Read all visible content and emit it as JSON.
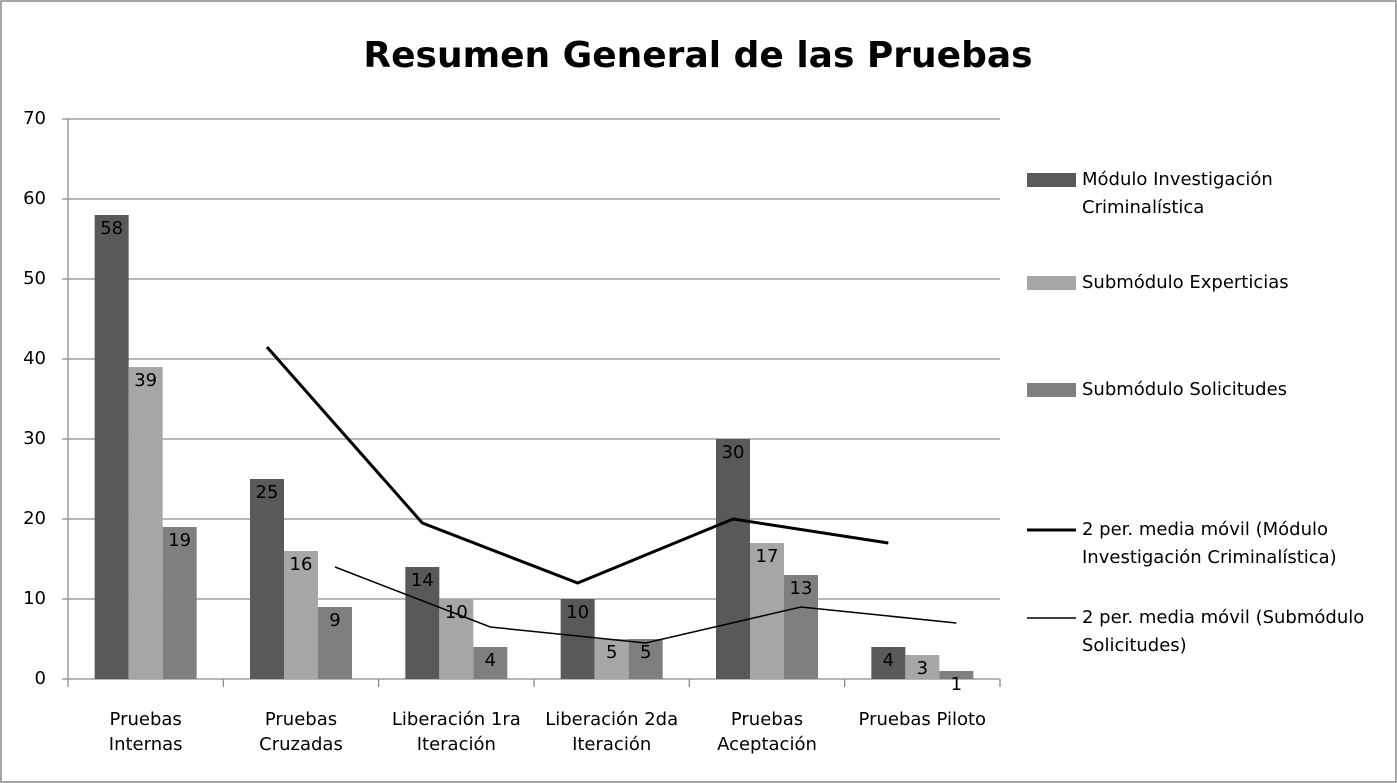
{
  "chart_data": {
    "type": "bar",
    "title": "Resumen General de las Pruebas",
    "categories": [
      "Pruebas Internas",
      "Pruebas Cruzadas",
      "Liberación 1ra Iteración",
      "Liberación 2da Iteración",
      "Pruebas Aceptación",
      "Pruebas Piloto"
    ],
    "series": [
      {
        "name": "Módulo Investigación Criminalística",
        "type": "bar",
        "color": "#595959",
        "values": [
          58,
          25,
          14,
          10,
          30,
          4
        ]
      },
      {
        "name": "Submódulo Experticias",
        "type": "bar",
        "color": "#a6a6a6",
        "values": [
          39,
          16,
          10,
          5,
          17,
          3
        ]
      },
      {
        "name": "Submódulo Solicitudes",
        "type": "bar",
        "color": "#7f7f7f",
        "values": [
          19,
          9,
          4,
          5,
          13,
          1
        ]
      },
      {
        "name": "2 per. media móvil (Módulo Investigación Criminalística)",
        "type": "line",
        "color": "#000000",
        "line_width": 3,
        "based_on": 0,
        "values": [
          null,
          41.5,
          19.5,
          12,
          20,
          17
        ]
      },
      {
        "name": "2 per. media móvil (Submódulo Solicitudes)",
        "type": "line",
        "color": "#000000",
        "line_width": 1.5,
        "based_on": 2,
        "values": [
          null,
          14,
          6.5,
          4.5,
          9,
          7
        ]
      }
    ],
    "ylim": [
      0,
      70
    ],
    "yticks": [
      0,
      10,
      20,
      30,
      40,
      50,
      60,
      70
    ],
    "grid": true,
    "legend": "right",
    "data_labels": true
  }
}
